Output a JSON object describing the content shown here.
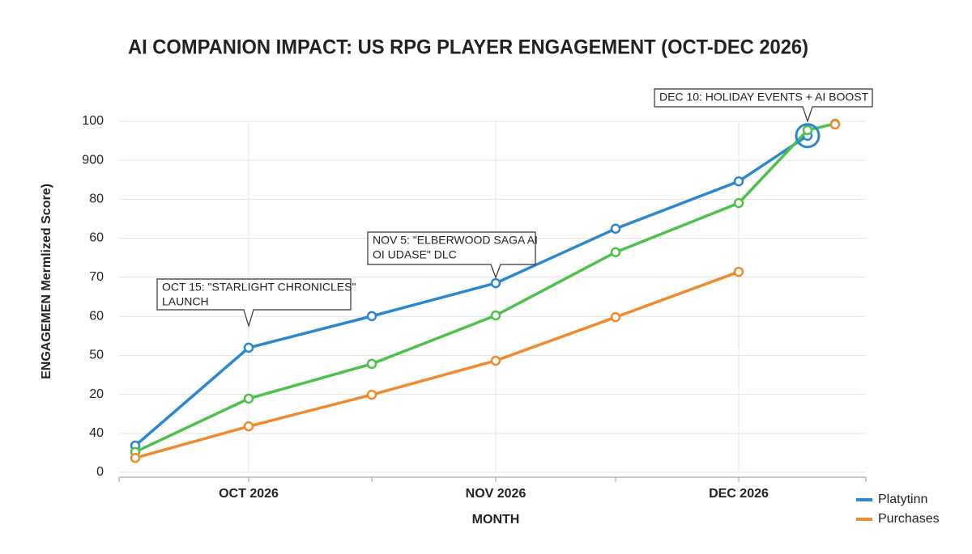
{
  "chart_data": {
    "type": "line",
    "title": "AI COMPANION IMPACT: US RPG PLAYER ENGAGEMENT (OCT-DEC 2026)",
    "x_label": "MONTH",
    "y_label": "ENGAGEMEN Mermlized Score)",
    "categories": [
      null,
      "OCT 2026",
      null,
      "NOV 2026",
      null,
      "DEC 2026",
      null,
      null
    ],
    "series": [
      {
        "name": "Platytinn",
        "color": "#2a87d0",
        "values": [
          7.6,
          35.5,
          44.5,
          53.9,
          69.4,
          82.9,
          95.9,
          null
        ]
      },
      {
        "color": "#4cc24a",
        "values": [
          5.8,
          21.0,
          30.9,
          44.7,
          62.7,
          76.7,
          97.5,
          99.3
        ]
      },
      {
        "name": "Purchases",
        "color": "#f08a2c",
        "values": [
          4.1,
          13.1,
          22.1,
          31.8,
          44.2,
          57.1,
          null,
          99.1
        ]
      }
    ],
    "ylim": [
      0,
      100
    ],
    "yticks": [
      0,
      {
        "value": 11.1,
        "label": "40"
      },
      {
        "value": 22.2,
        "label": "20"
      },
      {
        "value": 33.3,
        "label": "50"
      },
      {
        "value": 44.4,
        "label": "60"
      },
      {
        "value": 55.6,
        "label": "70"
      },
      {
        "value": 66.7,
        "label": "60"
      },
      {
        "value": 77.8,
        "label": "80"
      },
      {
        "value": 88.9,
        "label": "900"
      },
      100
    ],
    "grid": true,
    "legend": "bottom-right",
    "annotations": [
      {
        "lines": [
          "OCT 15: \"STARLIGHT CHRONICLES\"",
          "LAUNCH"
        ]
      },
      {
        "lines": [
          "NOV 5: \"ELBERWOOD SAGA AI",
          "OI UDASE\" DLC"
        ]
      },
      {
        "lines": [
          "DEC 10: HOLIDAY EVENTS + AI BOOST"
        ]
      }
    ]
  }
}
